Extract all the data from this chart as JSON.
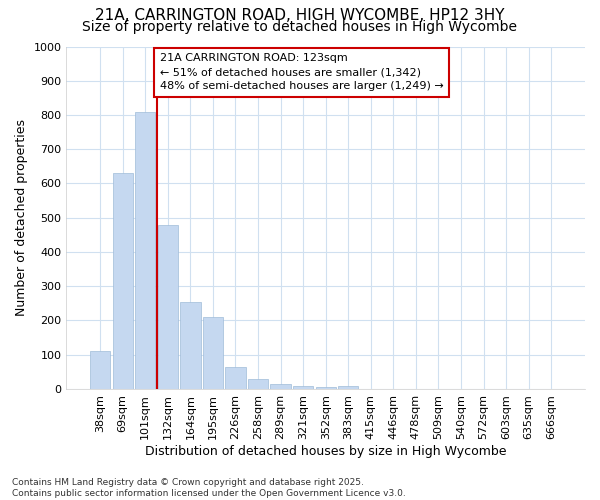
{
  "title_line1": "21A, CARRINGTON ROAD, HIGH WYCOMBE, HP12 3HY",
  "title_line2": "Size of property relative to detached houses in High Wycombe",
  "xlabel": "Distribution of detached houses by size in High Wycombe",
  "ylabel": "Number of detached properties",
  "categories": [
    "38sqm",
    "69sqm",
    "101sqm",
    "132sqm",
    "164sqm",
    "195sqm",
    "226sqm",
    "258sqm",
    "289sqm",
    "321sqm",
    "352sqm",
    "383sqm",
    "415sqm",
    "446sqm",
    "478sqm",
    "509sqm",
    "540sqm",
    "572sqm",
    "603sqm",
    "635sqm",
    "666sqm"
  ],
  "values": [
    110,
    630,
    810,
    480,
    255,
    210,
    65,
    28,
    15,
    10,
    5,
    10,
    0,
    0,
    0,
    0,
    0,
    0,
    0,
    0,
    0
  ],
  "bar_color": "#c5d8f0",
  "bar_edge_color": "#a0bcd8",
  "vline_color": "#cc0000",
  "annotation_text": "21A CARRINGTON ROAD: 123sqm\n← 51% of detached houses are smaller (1,342)\n48% of semi-detached houses are larger (1,249) →",
  "annotation_box_facecolor": "#ffffff",
  "annotation_box_edgecolor": "#cc0000",
  "ylim": [
    0,
    1000
  ],
  "yticks": [
    0,
    100,
    200,
    300,
    400,
    500,
    600,
    700,
    800,
    900,
    1000
  ],
  "footnote": "Contains HM Land Registry data © Crown copyright and database right 2025.\nContains public sector information licensed under the Open Government Licence v3.0.",
  "background_color": "#ffffff",
  "grid_color": "#d0e0f0",
  "title_fontsize": 11,
  "subtitle_fontsize": 10,
  "axis_label_fontsize": 9,
  "tick_fontsize": 8,
  "annotation_fontsize": 8,
  "footnote_fontsize": 6.5
}
